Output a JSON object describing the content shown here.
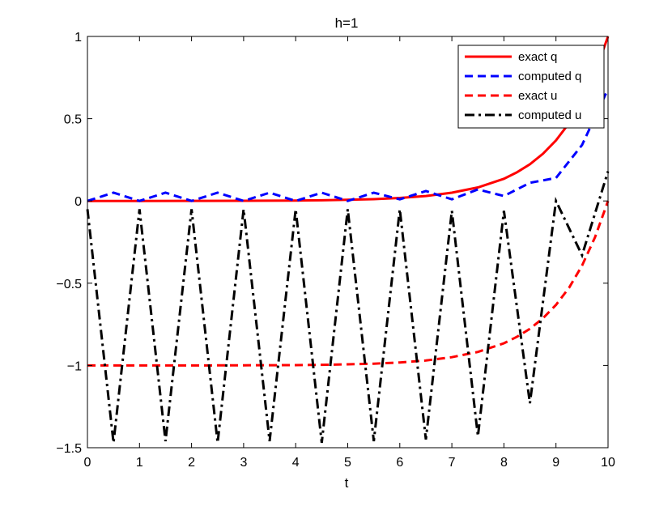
{
  "chart_data": {
    "type": "line",
    "title": "h=1",
    "xlabel": "t",
    "ylabel": "",
    "xlim": [
      0,
      10
    ],
    "ylim": [
      -1.5,
      1
    ],
    "xticks": [
      0,
      1,
      2,
      3,
      4,
      5,
      6,
      7,
      8,
      9,
      10
    ],
    "yticks": [
      -1.5,
      -1,
      -0.5,
      0,
      0.5,
      1
    ],
    "xtick_labels": [
      "0",
      "1",
      "2",
      "3",
      "4",
      "5",
      "6",
      "7",
      "8",
      "9",
      "10"
    ],
    "ytick_labels": [
      "−1.5",
      "−1",
      "−0.5",
      "0",
      "0.5",
      "1"
    ],
    "grid": false,
    "legend_position": "top-right",
    "series": [
      {
        "name": "exact q",
        "color": "#ff0000",
        "style": "solid",
        "x": [
          0,
          1,
          2,
          3,
          4,
          4.5,
          5,
          5.5,
          6,
          6.5,
          7,
          7.5,
          8,
          8.25,
          8.5,
          8.75,
          9,
          9.25,
          9.5,
          9.75,
          10
        ],
        "y": [
          0,
          0.0001,
          0.0003,
          0.0009,
          0.0024,
          0.004,
          0.0067,
          0.011,
          0.018,
          0.03,
          0.05,
          0.082,
          0.135,
          0.174,
          0.223,
          0.287,
          0.368,
          0.472,
          0.607,
          0.779,
          1
        ]
      },
      {
        "name": "computed q",
        "color": "#0000ff",
        "style": "dashed",
        "x": [
          0,
          0.5,
          1,
          1.5,
          2,
          2.5,
          3,
          3.5,
          4,
          4.5,
          5,
          5.5,
          6,
          6.5,
          7,
          7.5,
          8,
          8.5,
          9,
          9.5,
          10
        ],
        "y": [
          0,
          0.05,
          0,
          0.05,
          0,
          0.05,
          0,
          0.05,
          0,
          0.05,
          0,
          0.05,
          0.01,
          0.06,
          0.01,
          0.07,
          0.03,
          0.11,
          0.14,
          0.34,
          0.68
        ]
      },
      {
        "name": "exact u",
        "color": "#ff0000",
        "style": "dashed",
        "x": [
          0,
          1,
          2,
          3,
          4,
          4.5,
          5,
          5.5,
          6,
          6.5,
          7,
          7.5,
          8,
          8.25,
          8.5,
          8.75,
          9,
          9.25,
          9.5,
          9.75,
          10
        ],
        "y": [
          -1,
          -1,
          -1,
          -0.999,
          -0.998,
          -0.996,
          -0.993,
          -0.989,
          -0.982,
          -0.97,
          -0.95,
          -0.918,
          -0.865,
          -0.826,
          -0.777,
          -0.713,
          -0.632,
          -0.528,
          -0.393,
          -0.221,
          0
        ]
      },
      {
        "name": "computed u",
        "color": "#000000",
        "style": "dashdot",
        "x": [
          0,
          0.5,
          1,
          1.5,
          2,
          2.5,
          3,
          3.5,
          4,
          4.5,
          5,
          5.5,
          6,
          6.5,
          7,
          7.5,
          8,
          8.5,
          9,
          9.5,
          10
        ],
        "y": [
          -0.05,
          -1.47,
          -0.05,
          -1.46,
          -0.05,
          -1.47,
          -0.05,
          -1.46,
          -0.05,
          -1.47,
          -0.05,
          -1.46,
          -0.05,
          -1.45,
          -0.06,
          -1.43,
          -0.06,
          -1.23,
          0,
          -0.33,
          0.18
        ]
      }
    ]
  }
}
